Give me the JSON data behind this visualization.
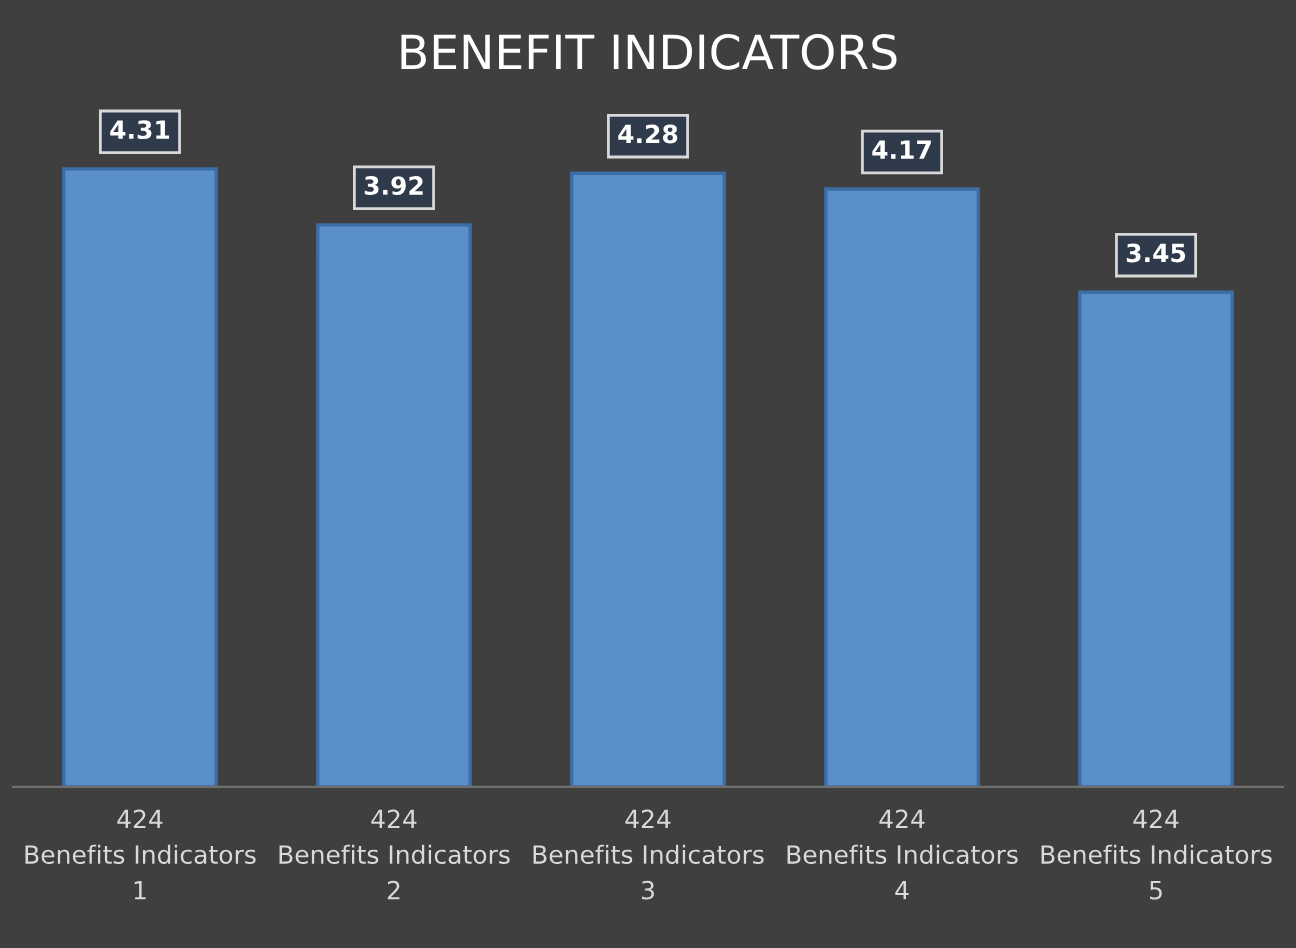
{
  "chart_data": {
    "type": "bar",
    "title": "BENEFIT INDICATORS",
    "categories": [
      "424\nBenefits Indicators\n1",
      "424\nBenefits Indicators\n2",
      "424\nBenefits Indicators\n3",
      "424\nBenefits Indicators\n4",
      "424\nBenefits Indicators\n5"
    ],
    "values": [
      4.31,
      3.92,
      4.28,
      4.17,
      3.45
    ],
    "color": "#5b8fca",
    "data_labels": true,
    "grid": false,
    "legend": false
  }
}
